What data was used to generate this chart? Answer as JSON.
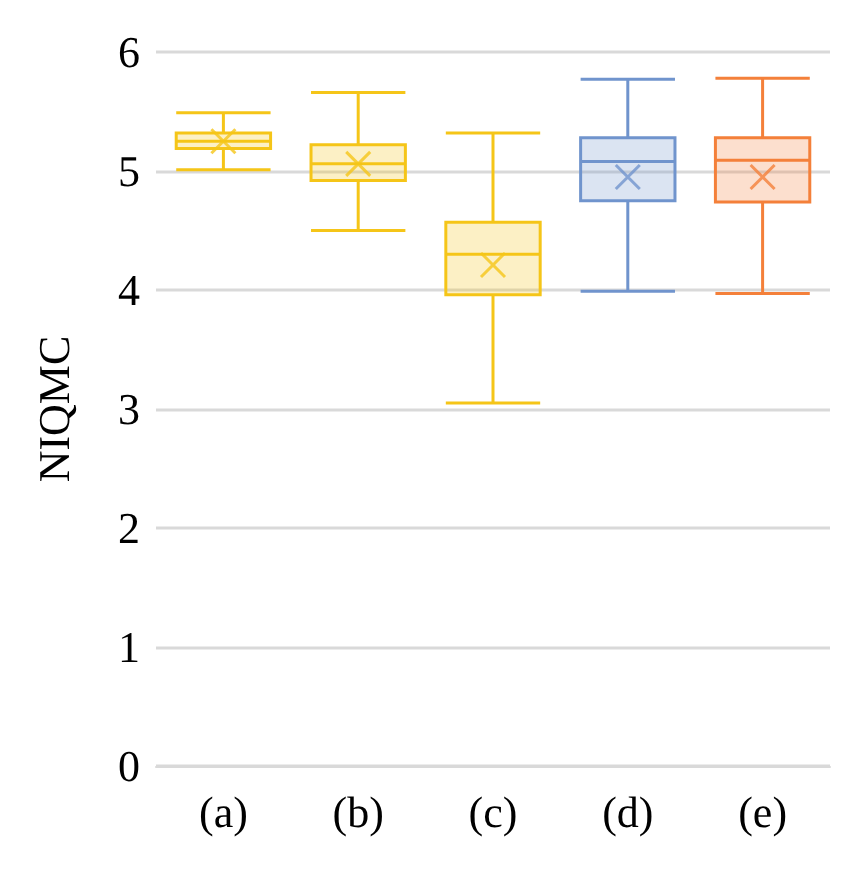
{
  "chart_data": {
    "type": "box",
    "ylabel": "NIQMC",
    "categories": [
      "(a)",
      "(b)",
      "(c)",
      "(d)",
      "(e)"
    ],
    "colors": [
      "#f5c518",
      "#f5c518",
      "#f5c518",
      "#7094cd",
      "#f4803a"
    ],
    "boxes": [
      {
        "low": 5.01,
        "q1": 5.19,
        "median": 5.25,
        "q3": 5.32,
        "high": 5.49,
        "mean": 5.25
      },
      {
        "low": 4.5,
        "q1": 4.92,
        "median": 5.06,
        "q3": 5.22,
        "high": 5.66,
        "mean": 5.06
      },
      {
        "low": 3.05,
        "q1": 3.96,
        "median": 4.3,
        "q3": 4.57,
        "high": 5.32,
        "mean": 4.21
      },
      {
        "low": 3.99,
        "q1": 4.75,
        "median": 5.08,
        "q3": 5.28,
        "high": 5.77,
        "mean": 4.95
      },
      {
        "low": 3.97,
        "q1": 4.74,
        "median": 5.09,
        "q3": 5.28,
        "high": 5.78,
        "mean": 4.95
      }
    ],
    "ylim": [
      0,
      6
    ],
    "yticks": [
      0,
      1,
      2,
      3,
      4,
      5,
      6
    ],
    "grid": "y"
  }
}
